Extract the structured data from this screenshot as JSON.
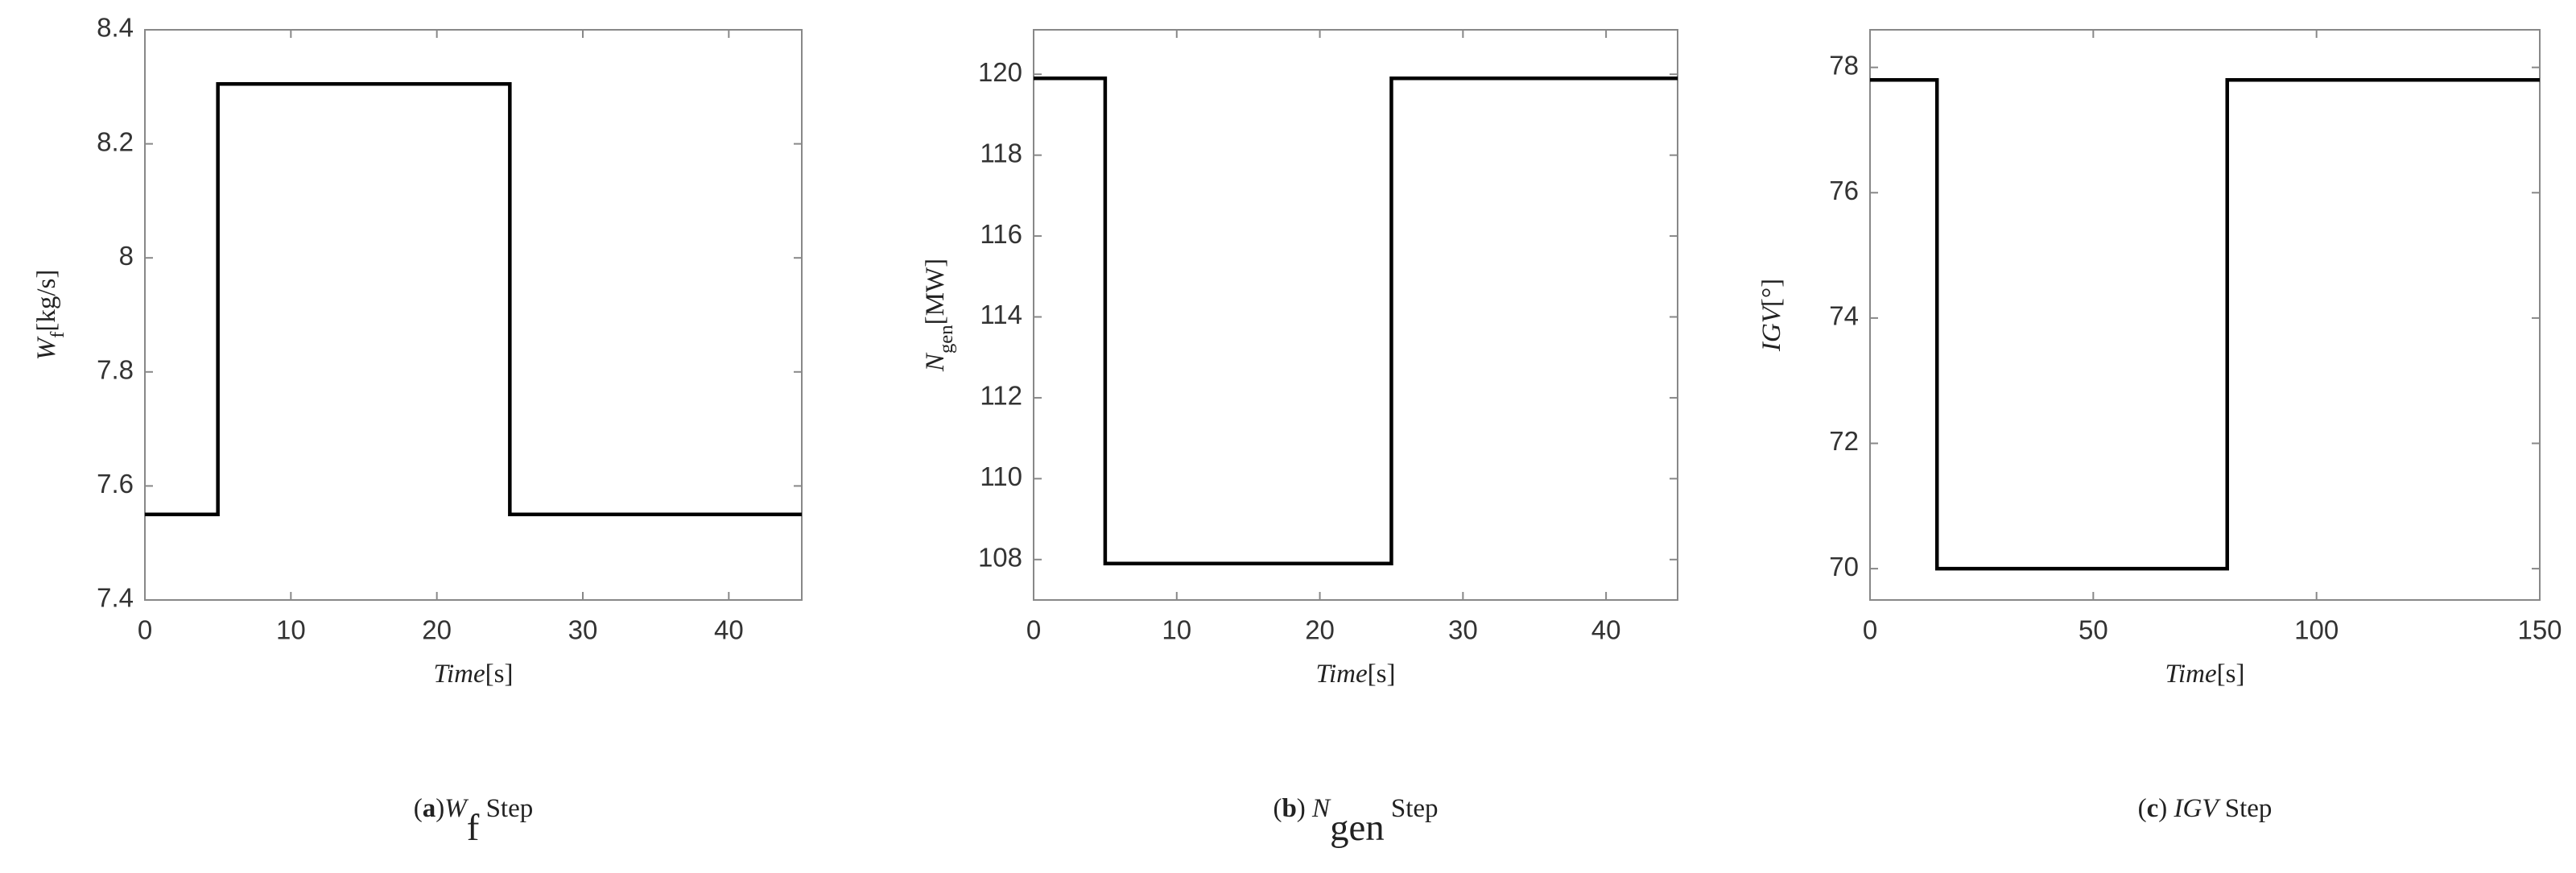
{
  "chart_data": [
    {
      "type": "line",
      "color": "#000000",
      "ylabel": [
        {
          "text": "W",
          "style": "italic"
        },
        {
          "text": "f",
          "style": "sub"
        },
        {
          "text": "[kg/s]",
          "style": "plain"
        }
      ],
      "xlabel": [
        {
          "text": "Time",
          "style": "italic"
        },
        {
          "text": "[s]",
          "style": "plain"
        }
      ],
      "caption": [
        {
          "text": "(",
          "style": "plain"
        },
        {
          "text": "a",
          "style": "bold"
        },
        {
          "text": ")",
          "style": "plain"
        },
        {
          "text": "W",
          "style": "italic"
        },
        {
          "text": "f",
          "style": "sub"
        },
        {
          "text": " Step",
          "style": "plain"
        }
      ],
      "x": [
        0,
        5,
        5,
        25,
        25,
        45
      ],
      "values": [
        7.55,
        7.55,
        8.305,
        8.305,
        7.55,
        7.55
      ],
      "xlim": [
        0,
        45
      ],
      "xticks": [
        0,
        10,
        20,
        30,
        40
      ],
      "ylim": [
        7.4,
        8.4
      ],
      "yticks": [
        7.4,
        7.6,
        7.8,
        8,
        8.2,
        8.4
      ]
    },
    {
      "type": "line",
      "color": "#000000",
      "ylabel": [
        {
          "text": "N",
          "style": "italic"
        },
        {
          "text": "gen",
          "style": "sub"
        },
        {
          "text": "[MW]",
          "style": "plain"
        }
      ],
      "xlabel": [
        {
          "text": "Time",
          "style": "italic"
        },
        {
          "text": "[s]",
          "style": "plain"
        }
      ],
      "caption": [
        {
          "text": "(",
          "style": "plain"
        },
        {
          "text": "b",
          "style": "bold"
        },
        {
          "text": ") ",
          "style": "plain"
        },
        {
          "text": "N",
          "style": "italic"
        },
        {
          "text": "gen",
          "style": "sub"
        },
        {
          "text": " Step",
          "style": "plain"
        }
      ],
      "x": [
        0,
        5,
        5,
        25,
        25,
        45
      ],
      "values": [
        119.9,
        119.9,
        107.9,
        107.9,
        119.9,
        119.9
      ],
      "xlim": [
        0,
        45
      ],
      "xticks": [
        0,
        10,
        20,
        30,
        40
      ],
      "ylim": [
        107,
        121.1
      ],
      "yticks": [
        108,
        110,
        112,
        114,
        116,
        118,
        120
      ]
    },
    {
      "type": "line",
      "color": "#000000",
      "ylabel": [
        {
          "text": "IGV",
          "style": "italic"
        },
        {
          "text": "[°]",
          "style": "plain"
        }
      ],
      "xlabel": [
        {
          "text": "Time",
          "style": "italic"
        },
        {
          "text": "[s]",
          "style": "plain"
        }
      ],
      "caption": [
        {
          "text": "(",
          "style": "plain"
        },
        {
          "text": "c",
          "style": "bold"
        },
        {
          "text": ") ",
          "style": "plain"
        },
        {
          "text": "IGV",
          "style": "italic"
        },
        {
          "text": " Step",
          "style": "plain"
        }
      ],
      "x": [
        0,
        15,
        15,
        80,
        80,
        150
      ],
      "values": [
        77.8,
        77.8,
        70,
        70,
        77.8,
        77.8
      ],
      "xlim": [
        0,
        150
      ],
      "xticks": [
        0,
        50,
        100,
        150
      ],
      "ylim": [
        69.5,
        78.6
      ],
      "yticks": [
        70,
        72,
        74,
        76,
        78
      ]
    }
  ]
}
